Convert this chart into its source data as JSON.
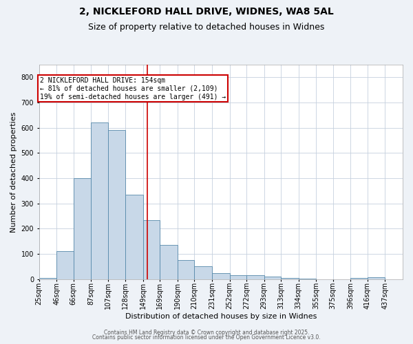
{
  "title1": "2, NICKLEFORD HALL DRIVE, WIDNES, WA8 5AL",
  "title2": "Size of property relative to detached houses in Widnes",
  "xlabel": "Distribution of detached houses by size in Widnes",
  "ylabel": "Number of detached properties",
  "bin_labels": [
    "25sqm",
    "46sqm",
    "66sqm",
    "87sqm",
    "107sqm",
    "128sqm",
    "149sqm",
    "169sqm",
    "190sqm",
    "210sqm",
    "231sqm",
    "252sqm",
    "272sqm",
    "293sqm",
    "313sqm",
    "334sqm",
    "355sqm",
    "375sqm",
    "396sqm",
    "416sqm",
    "437sqm"
  ],
  "bin_edges": [
    25,
    46,
    66,
    87,
    107,
    128,
    149,
    169,
    190,
    210,
    231,
    252,
    272,
    293,
    313,
    334,
    355,
    375,
    396,
    416,
    437,
    458
  ],
  "bar_heights": [
    5,
    110,
    400,
    620,
    590,
    335,
    235,
    135,
    75,
    50,
    25,
    15,
    17,
    10,
    4,
    2,
    0,
    0,
    5,
    8,
    0
  ],
  "bar_color": "#c8d8e8",
  "bar_edgecolor": "#5588aa",
  "vline_x": 154,
  "vline_color": "#cc0000",
  "annotation_line1": "2 NICKLEFORD HALL DRIVE: 154sqm",
  "annotation_line2": "← 81% of detached houses are smaller (2,109)",
  "annotation_line3": "19% of semi-detached houses are larger (491) →",
  "annotation_box_color": "#cc0000",
  "ylim": [
    0,
    850
  ],
  "yticks": [
    0,
    100,
    200,
    300,
    400,
    500,
    600,
    700,
    800
  ],
  "footer1": "Contains HM Land Registry data © Crown copyright and database right 2025.",
  "footer2": "Contains public sector information licensed under the Open Government Licence v3.0.",
  "bg_color": "#eef2f7",
  "plot_bg_color": "#ffffff",
  "title1_fontsize": 10,
  "title2_fontsize": 9,
  "axis_label_fontsize": 8,
  "tick_fontsize": 7,
  "footer_fontsize": 5.5
}
